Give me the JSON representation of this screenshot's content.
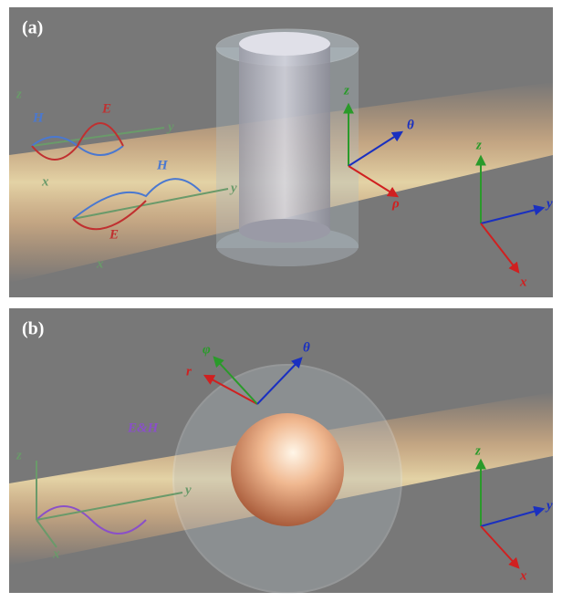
{
  "panels": [
    {
      "label": "(a)",
      "annotations": [
        "H",
        "E",
        "z",
        "y",
        "x",
        "H",
        "E",
        "y",
        "x",
        "z",
        "θ",
        "ρ",
        "z",
        "y",
        "x"
      ]
    },
    {
      "label": "(b)",
      "annotations": [
        "z",
        "E&H",
        "y",
        "x",
        "r",
        "φ",
        "θ",
        "z",
        "y",
        "x"
      ]
    }
  ]
}
